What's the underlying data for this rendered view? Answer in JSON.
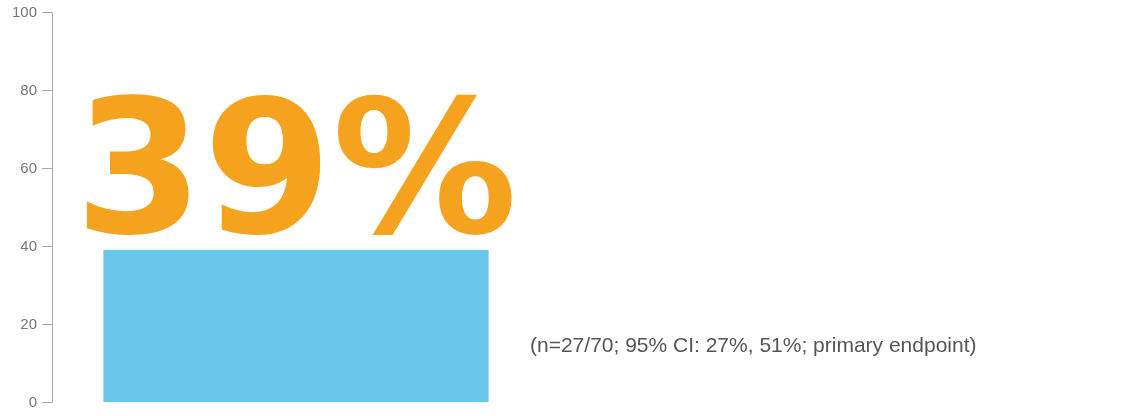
{
  "chart_data": {
    "type": "bar",
    "categories": [
      null
    ],
    "values": [
      39
    ],
    "color": "#6bc6ec",
    "value_labels": [
      "39%"
    ],
    "ylim": [
      0,
      100
    ],
    "yticks": [
      0,
      20,
      40,
      60,
      80,
      100
    ],
    "grid": false,
    "annotations": [
      "(n=27/70; 95% CI: 27%, 51%; primary endpoint)"
    ]
  }
}
